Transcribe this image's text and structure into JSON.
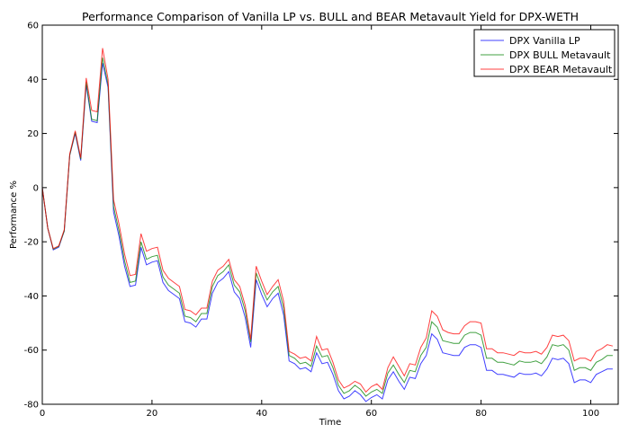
{
  "chart_data": {
    "type": "line",
    "title": "Performance Comparison of Vanilla LP vs. BULL and BEAR Metavault Yield for DPX-WETH",
    "xlabel": "Time",
    "ylabel": "Performance %",
    "xlim": [
      0,
      105
    ],
    "ylim": [
      -80,
      60
    ],
    "xticks": [
      0,
      20,
      40,
      60,
      80,
      100
    ],
    "yticks": [
      -80,
      -60,
      -40,
      -20,
      0,
      20,
      40,
      60
    ],
    "grid": false,
    "legend_position": "top-right",
    "series": [
      {
        "name": "DPX Vanilla LP",
        "color": "#0000ff",
        "values": [
          0,
          -15,
          -23,
          -22,
          -16,
          12,
          20,
          10,
          38,
          24.5,
          24,
          46,
          37,
          -9,
          -18,
          -29,
          -36.5,
          -36,
          -22,
          -28.5,
          -27.5,
          -27,
          -35,
          -38,
          -39.5,
          -41,
          -49.5,
          -50,
          -51.5,
          -48.5,
          -48.5,
          -39,
          -35,
          -33.5,
          -31,
          -38.5,
          -41,
          -48,
          -59,
          -34,
          -39.5,
          -44,
          -41,
          -39,
          -47,
          -64,
          -65,
          -67,
          -66.5,
          -68,
          -61,
          -65,
          -64.5,
          -69,
          -75,
          -78,
          -77,
          -75,
          -76.5,
          -79,
          -77.5,
          -76.5,
          -78,
          -71,
          -68,
          -71.5,
          -74.5,
          -70,
          -70.5,
          -65,
          -62,
          -54,
          -56,
          -61,
          -61.5,
          -62,
          -62,
          -59,
          -58,
          -58,
          -59,
          -67.5,
          -67.5,
          -69,
          -69,
          -69.5,
          -70,
          -68.5,
          -69,
          -69,
          -68.5,
          -69.5,
          -67,
          -63,
          -63.5,
          -63,
          -65,
          -72,
          -71,
          -71,
          -72,
          -69,
          -68,
          -67,
          -67
        ]
      },
      {
        "name": "DPX BULL Metavault",
        "color": "#008000",
        "values": [
          0,
          -15,
          -22.7,
          -21.7,
          -16,
          12,
          20.5,
          10.5,
          39,
          25.2,
          24.7,
          48,
          38,
          -7,
          -16,
          -27,
          -35,
          -34.5,
          -20,
          -26.5,
          -25.5,
          -25,
          -33,
          -36,
          -37.5,
          -39,
          -47.5,
          -48,
          -49.5,
          -46.5,
          -46.5,
          -36.5,
          -32.5,
          -31,
          -28.5,
          -36,
          -38.5,
          -45.5,
          -57,
          -31.5,
          -37,
          -41.5,
          -38.5,
          -36.5,
          -44.5,
          -62,
          -63,
          -65,
          -64.5,
          -66,
          -58.5,
          -62.5,
          -62,
          -66.5,
          -73,
          -76,
          -75,
          -73,
          -74.5,
          -77,
          -75.5,
          -74.5,
          -76,
          -68.5,
          -65.5,
          -69,
          -72,
          -67.5,
          -68,
          -62,
          -59,
          -49.5,
          -51.5,
          -56.5,
          -57,
          -57.5,
          -57.5,
          -54.5,
          -53.5,
          -53.5,
          -54.5,
          -63,
          -63,
          -64.5,
          -64.5,
          -65,
          -65.5,
          -64,
          -64.5,
          -64.5,
          -64,
          -65,
          -62.5,
          -58,
          -58.5,
          -58,
          -60,
          -67.5,
          -66.5,
          -66.5,
          -67.5,
          -64.5,
          -63.5,
          -62,
          -62
        ]
      },
      {
        "name": "DPX BEAR Metavault",
        "color": "#ff0000",
        "values": [
          0,
          -15,
          -22.5,
          -21.5,
          -15.5,
          12.5,
          21,
          11,
          40.5,
          28.5,
          28,
          51.5,
          40,
          -4.5,
          -13.5,
          -24.5,
          -32.5,
          -32,
          -17,
          -23.5,
          -22.5,
          -22,
          -30.5,
          -33.5,
          -35,
          -36.5,
          -45,
          -45.5,
          -47,
          -44.5,
          -44.5,
          -34.5,
          -30.5,
          -29,
          -26.5,
          -34,
          -36.5,
          -43.5,
          -56,
          -29,
          -34.5,
          -39.5,
          -36.5,
          -34,
          -42,
          -60.5,
          -61.5,
          -63,
          -62.5,
          -64,
          -55,
          -60,
          -59.5,
          -64.5,
          -71,
          -74,
          -73,
          -71.5,
          -72.5,
          -75.5,
          -73.5,
          -72.5,
          -74.5,
          -66.5,
          -62.5,
          -66,
          -69.5,
          -65,
          -65.5,
          -59,
          -55.5,
          -45.5,
          -47.5,
          -52.5,
          -53.5,
          -54,
          -54,
          -51,
          -49.5,
          -49.5,
          -50,
          -59.5,
          -59.5,
          -61,
          -61,
          -61.5,
          -62,
          -60.5,
          -61,
          -61,
          -60.5,
          -61.5,
          -59,
          -54.5,
          -55,
          -54.5,
          -56.5,
          -64,
          -63,
          -63,
          -64,
          -60.5,
          -59.5,
          -58,
          -58.5
        ]
      }
    ]
  }
}
